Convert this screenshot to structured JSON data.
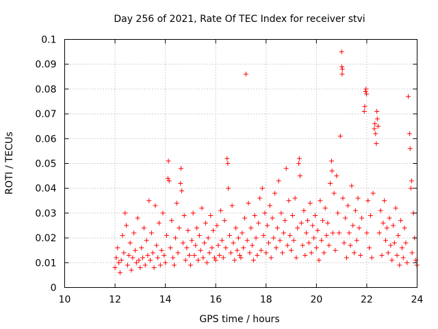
{
  "chart_data": {
    "type": "scatter",
    "title": "Day 256 of 2021, Rate Of TEC Index for receiver stvi",
    "xlabel": "GPS time / hours",
    "ylabel": "ROTI / TECUs",
    "xlim": [
      10,
      24
    ],
    "ylim": [
      0,
      0.1
    ],
    "xticks": [
      "10",
      "12",
      "14",
      "16",
      "18",
      "20",
      "22",
      "24"
    ],
    "yticks": [
      "0",
      "0.01",
      "0.02",
      "0.03",
      "0.04",
      "0.05",
      "0.06",
      "0.07",
      "0.08",
      "0.09",
      "0.1"
    ],
    "grid": true,
    "marker": "+",
    "color": "#ff0000",
    "series": [
      {
        "points": [
          [
            12.0,
            0.008
          ],
          [
            12.05,
            0.012
          ],
          [
            12.1,
            0.016
          ],
          [
            12.15,
            0.01
          ],
          [
            12.2,
            0.006
          ],
          [
            12.25,
            0.011
          ],
          [
            12.3,
            0.021
          ],
          [
            12.35,
            0.014
          ],
          [
            12.4,
            0.03
          ],
          [
            12.45,
            0.025
          ],
          [
            12.5,
            0.009
          ],
          [
            12.55,
            0.013
          ],
          [
            12.6,
            0.018
          ],
          [
            12.65,
            0.007
          ],
          [
            12.7,
            0.012
          ],
          [
            12.75,
            0.022
          ],
          [
            12.8,
            0.015
          ],
          [
            12.85,
            0.01
          ],
          [
            12.9,
            0.028
          ],
          [
            12.95,
            0.011
          ],
          [
            13.0,
            0.008
          ],
          [
            13.05,
            0.016
          ],
          [
            13.1,
            0.012
          ],
          [
            13.15,
            0.024
          ],
          [
            13.2,
            0.009
          ],
          [
            13.25,
            0.019
          ],
          [
            13.3,
            0.013
          ],
          [
            13.35,
            0.035
          ],
          [
            13.4,
            0.011
          ],
          [
            13.45,
            0.022
          ],
          [
            13.5,
            0.014
          ],
          [
            13.55,
            0.008
          ],
          [
            13.6,
            0.033
          ],
          [
            13.65,
            0.017
          ],
          [
            13.7,
            0.012
          ],
          [
            13.75,
            0.026
          ],
          [
            13.8,
            0.009
          ],
          [
            13.85,
            0.015
          ],
          [
            13.9,
            0.03
          ],
          [
            13.95,
            0.013
          ],
          [
            14.0,
            0.01
          ],
          [
            14.05,
            0.021
          ],
          [
            14.1,
            0.044
          ],
          [
            14.12,
            0.051
          ],
          [
            14.15,
            0.043
          ],
          [
            14.2,
            0.016
          ],
          [
            14.25,
            0.027
          ],
          [
            14.3,
            0.012
          ],
          [
            14.35,
            0.009
          ],
          [
            14.4,
            0.02
          ],
          [
            14.45,
            0.034
          ],
          [
            14.5,
            0.014
          ],
          [
            14.55,
            0.024
          ],
          [
            14.6,
            0.042
          ],
          [
            14.62,
            0.048
          ],
          [
            14.65,
            0.039
          ],
          [
            14.7,
            0.018
          ],
          [
            14.75,
            0.029
          ],
          [
            14.8,
            0.011
          ],
          [
            14.85,
            0.016
          ],
          [
            14.9,
            0.023
          ],
          [
            14.95,
            0.013
          ],
          [
            15.0,
            0.009
          ],
          [
            15.05,
            0.019
          ],
          [
            15.1,
            0.03
          ],
          [
            15.15,
            0.013
          ],
          [
            15.2,
            0.017
          ],
          [
            15.25,
            0.024
          ],
          [
            15.3,
            0.011
          ],
          [
            15.35,
            0.021
          ],
          [
            15.4,
            0.015
          ],
          [
            15.45,
            0.032
          ],
          [
            15.5,
            0.012
          ],
          [
            15.55,
            0.018
          ],
          [
            15.6,
            0.026
          ],
          [
            15.65,
            0.01
          ],
          [
            15.7,
            0.02
          ],
          [
            15.75,
            0.014
          ],
          [
            15.8,
            0.029
          ],
          [
            15.85,
            0.016
          ],
          [
            15.9,
            0.023
          ],
          [
            15.95,
            0.012
          ],
          [
            16.0,
            0.011
          ],
          [
            16.05,
            0.025
          ],
          [
            16.1,
            0.017
          ],
          [
            16.15,
            0.013
          ],
          [
            16.2,
            0.031
          ],
          [
            16.25,
            0.019
          ],
          [
            16.3,
            0.012
          ],
          [
            16.35,
            0.027
          ],
          [
            16.4,
            0.016
          ],
          [
            16.45,
            0.052
          ],
          [
            16.48,
            0.05
          ],
          [
            16.5,
            0.04
          ],
          [
            16.55,
            0.021
          ],
          [
            16.6,
            0.014
          ],
          [
            16.65,
            0.033
          ],
          [
            16.7,
            0.018
          ],
          [
            16.75,
            0.011
          ],
          [
            16.8,
            0.024
          ],
          [
            16.85,
            0.015
          ],
          [
            16.9,
            0.02
          ],
          [
            16.95,
            0.013
          ],
          [
            17.0,
            0.012
          ],
          [
            17.05,
            0.022
          ],
          [
            17.1,
            0.016
          ],
          [
            17.15,
            0.028
          ],
          [
            17.2,
            0.086
          ],
          [
            17.25,
            0.019
          ],
          [
            17.3,
            0.034
          ],
          [
            17.35,
            0.014
          ],
          [
            17.4,
            0.024
          ],
          [
            17.45,
            0.017
          ],
          [
            17.5,
            0.011
          ],
          [
            17.55,
            0.029
          ],
          [
            17.6,
            0.02
          ],
          [
            17.65,
            0.013
          ],
          [
            17.7,
            0.026
          ],
          [
            17.75,
            0.036
          ],
          [
            17.8,
            0.015
          ],
          [
            17.85,
            0.04
          ],
          [
            17.9,
            0.021
          ],
          [
            17.95,
            0.03
          ],
          [
            18.0,
            0.014
          ],
          [
            18.05,
            0.025
          ],
          [
            18.1,
            0.018
          ],
          [
            18.15,
            0.033
          ],
          [
            18.2,
            0.012
          ],
          [
            18.25,
            0.028
          ],
          [
            18.3,
            0.02
          ],
          [
            18.35,
            0.038
          ],
          [
            18.4,
            0.016
          ],
          [
            18.45,
            0.024
          ],
          [
            18.5,
            0.043
          ],
          [
            18.55,
            0.019
          ],
          [
            18.6,
            0.03
          ],
          [
            18.65,
            0.014
          ],
          [
            18.7,
            0.022
          ],
          [
            18.75,
            0.027
          ],
          [
            18.8,
            0.048
          ],
          [
            18.85,
            0.017
          ],
          [
            18.9,
            0.035
          ],
          [
            18.95,
            0.021
          ],
          [
            19.0,
            0.015
          ],
          [
            19.05,
            0.029
          ],
          [
            19.1,
            0.019
          ],
          [
            19.15,
            0.036
          ],
          [
            19.2,
            0.012
          ],
          [
            19.25,
            0.024
          ],
          [
            19.3,
            0.05
          ],
          [
            19.32,
            0.052
          ],
          [
            19.35,
            0.045
          ],
          [
            19.4,
            0.026
          ],
          [
            19.45,
            0.017
          ],
          [
            19.5,
            0.031
          ],
          [
            19.55,
            0.013
          ],
          [
            19.6,
            0.022
          ],
          [
            19.65,
            0.027
          ],
          [
            19.7,
            0.018
          ],
          [
            19.75,
            0.034
          ],
          [
            19.8,
            0.014
          ],
          [
            19.85,
            0.025
          ],
          [
            19.9,
            0.02
          ],
          [
            19.95,
            0.029
          ],
          [
            20.0,
            0.016
          ],
          [
            20.05,
            0.023
          ],
          [
            20.1,
            0.011
          ],
          [
            20.15,
            0.035
          ],
          [
            20.2,
            0.019
          ],
          [
            20.25,
            0.027
          ],
          [
            20.3,
            0.014
          ],
          [
            20.35,
            0.032
          ],
          [
            20.4,
            0.021
          ],
          [
            20.45,
            0.026
          ],
          [
            20.5,
            0.017
          ],
          [
            20.55,
            0.042
          ],
          [
            20.6,
            0.051
          ],
          [
            20.62,
            0.047
          ],
          [
            20.65,
            0.022
          ],
          [
            20.7,
            0.038
          ],
          [
            20.75,
            0.015
          ],
          [
            20.8,
            0.045
          ],
          [
            20.85,
            0.03
          ],
          [
            20.9,
            0.022
          ],
          [
            20.95,
            0.061
          ],
          [
            21.0,
            0.095
          ],
          [
            21.01,
            0.089
          ],
          [
            21.02,
            0.086
          ],
          [
            21.03,
            0.088
          ],
          [
            21.05,
            0.036
          ],
          [
            21.1,
            0.018
          ],
          [
            21.15,
            0.028
          ],
          [
            21.2,
            0.012
          ],
          [
            21.25,
            0.033
          ],
          [
            21.3,
            0.022
          ],
          [
            21.35,
            0.017
          ],
          [
            21.4,
            0.041
          ],
          [
            21.45,
            0.025
          ],
          [
            21.5,
            0.014
          ],
          [
            21.55,
            0.031
          ],
          [
            21.6,
            0.019
          ],
          [
            21.65,
            0.036
          ],
          [
            21.7,
            0.024
          ],
          [
            21.75,
            0.013
          ],
          [
            21.8,
            0.028
          ],
          [
            21.9,
            0.071
          ],
          [
            21.92,
            0.073
          ],
          [
            21.95,
            0.079
          ],
          [
            21.97,
            0.08
          ],
          [
            21.99,
            0.078
          ],
          [
            22.0,
            0.022
          ],
          [
            22.05,
            0.035
          ],
          [
            22.1,
            0.016
          ],
          [
            22.15,
            0.029
          ],
          [
            22.2,
            0.012
          ],
          [
            22.25,
            0.038
          ],
          [
            22.3,
            0.064
          ],
          [
            22.32,
            0.066
          ],
          [
            22.35,
            0.062
          ],
          [
            22.38,
            0.058
          ],
          [
            22.4,
            0.071
          ],
          [
            22.42,
            0.068
          ],
          [
            22.45,
            0.065
          ],
          [
            22.5,
            0.022
          ],
          [
            22.55,
            0.031
          ],
          [
            22.6,
            0.013
          ],
          [
            22.65,
            0.026
          ],
          [
            22.7,
            0.035
          ],
          [
            22.75,
            0.019
          ],
          [
            22.8,
            0.024
          ],
          [
            22.85,
            0.014
          ],
          [
            22.9,
            0.028
          ],
          [
            22.95,
            0.017
          ],
          [
            23.0,
            0.011
          ],
          [
            23.05,
            0.025
          ],
          [
            23.1,
            0.018
          ],
          [
            23.15,
            0.032
          ],
          [
            23.2,
            0.013
          ],
          [
            23.25,
            0.021
          ],
          [
            23.3,
            0.009
          ],
          [
            23.35,
            0.027
          ],
          [
            23.4,
            0.016
          ],
          [
            23.45,
            0.012
          ],
          [
            23.5,
            0.024
          ],
          [
            23.55,
            0.018
          ],
          [
            23.6,
            0.01
          ],
          [
            23.65,
            0.077
          ],
          [
            23.7,
            0.062
          ],
          [
            23.72,
            0.056
          ],
          [
            23.75,
            0.04
          ],
          [
            23.78,
            0.043
          ],
          [
            23.8,
            0.014
          ],
          [
            23.85,
            0.03
          ],
          [
            23.9,
            0.02
          ],
          [
            23.95,
            0.011
          ],
          [
            23.99,
            0.009
          ]
        ]
      }
    ]
  }
}
